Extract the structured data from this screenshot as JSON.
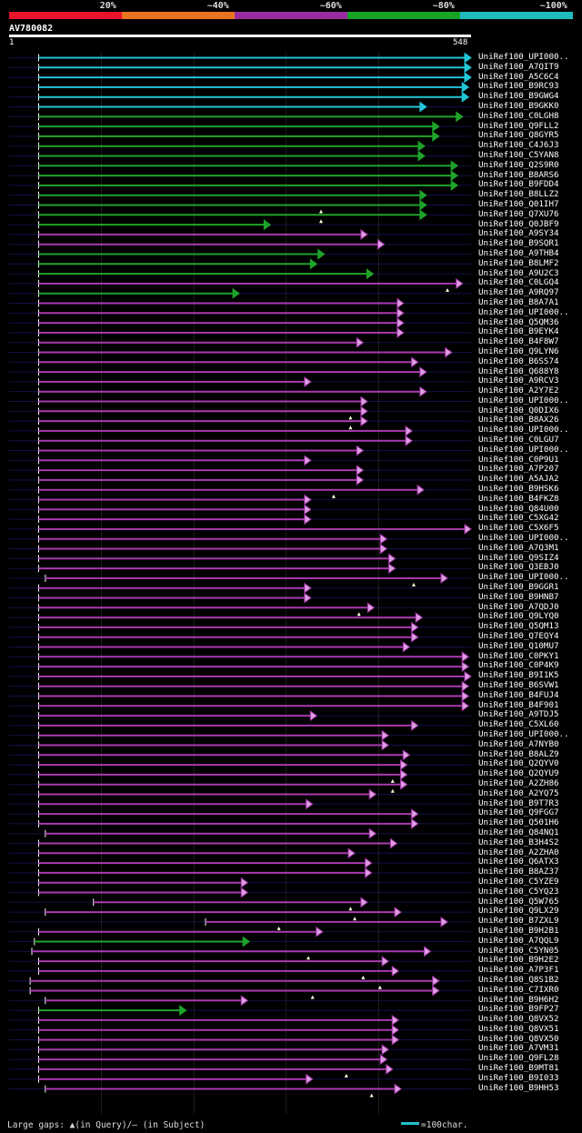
{
  "legend": {
    "segments": [
      {
        "color": "#e8132c",
        "label": "20%"
      },
      {
        "color": "#e87420",
        "label": "~40%"
      },
      {
        "color": "#9b2ca0",
        "label": "~60%"
      },
      {
        "color": "#17a326",
        "label": "~80%"
      },
      {
        "color": "#1fbbbd",
        "label": "~100%"
      }
    ]
  },
  "query": {
    "id": "AV780082",
    "length": 548,
    "ruler_start": "1",
    "ruler_end": "548"
  },
  "colors": {
    "cyan": "#22c6d8",
    "green": "#1fa32a",
    "purple": "#aa3ab0",
    "arrow_fill": "#dca0e0",
    "gap_marker": "#ffffe0"
  },
  "hits": [
    {
      "label": "UniRef100_UPI000..",
      "s": 35,
      "e": 548,
      "c": "cyan"
    },
    {
      "label": "UniRef100_A7QIT9",
      "s": 35,
      "e": 548,
      "c": "cyan"
    },
    {
      "label": "UniRef100_A5C6C4",
      "s": 35,
      "e": 548,
      "c": "cyan"
    },
    {
      "label": "UniRef100_B9RC93",
      "s": 35,
      "e": 545,
      "c": "cyan"
    },
    {
      "label": "UniRef100_B9GWG4",
      "s": 35,
      "e": 545,
      "c": "cyan"
    },
    {
      "label": "UniRef100_B9GKK0",
      "s": 35,
      "e": 495,
      "c": "cyan"
    },
    {
      "label": "UniRef100_C0LGH8",
      "s": 35,
      "e": 538,
      "c": "green"
    },
    {
      "label": "UniRef100_Q9FLL2",
      "s": 35,
      "e": 510,
      "c": "green"
    },
    {
      "label": "UniRef100_Q8GYR5",
      "s": 35,
      "e": 510,
      "c": "green"
    },
    {
      "label": "UniRef100_C4J6J3",
      "s": 35,
      "e": 493,
      "c": "green"
    },
    {
      "label": "UniRef100_C5YAN8",
      "s": 35,
      "e": 493,
      "c": "green"
    },
    {
      "label": "UniRef100_Q2S9R0",
      "s": 35,
      "e": 532,
      "c": "green"
    },
    {
      "label": "UniRef100_B8ARS6",
      "s": 35,
      "e": 532,
      "c": "green"
    },
    {
      "label": "UniRef100_B9FDD4",
      "s": 35,
      "e": 532,
      "c": "green"
    },
    {
      "label": "UniRef100_B8LLZ2",
      "s": 35,
      "e": 495,
      "c": "green"
    },
    {
      "label": "UniRef100_Q01IH7",
      "s": 35,
      "e": 495,
      "c": "green",
      "gap": 370
    },
    {
      "label": "UniRef100_Q7XU76",
      "s": 35,
      "e": 495,
      "c": "green",
      "gap": 370
    },
    {
      "label": "UniRef100_Q0JBF9",
      "s": 35,
      "e": 310,
      "c": "green"
    },
    {
      "label": "UniRef100_A9SY34",
      "s": 35,
      "e": 425,
      "c": "purple"
    },
    {
      "label": "UniRef100_B9SQR1",
      "s": 35,
      "e": 445,
      "c": "purple"
    },
    {
      "label": "UniRef100_A9THB4",
      "s": 35,
      "e": 374,
      "c": "green"
    },
    {
      "label": "UniRef100_B8LMF2",
      "s": 35,
      "e": 365,
      "c": "green"
    },
    {
      "label": "UniRef100_A9U2C3",
      "s": 35,
      "e": 432,
      "c": "green"
    },
    {
      "label": "UniRef100_C0LGQ4",
      "s": 35,
      "e": 538,
      "c": "purple",
      "gap": 520
    },
    {
      "label": "UniRef100_A9RQ97",
      "s": 35,
      "e": 273,
      "c": "green"
    },
    {
      "label": "UniRef100_B8A7A1",
      "s": 35,
      "e": 468,
      "c": "purple"
    },
    {
      "label": "UniRef100_UPI000..",
      "s": 35,
      "e": 468,
      "c": "purple"
    },
    {
      "label": "UniRef100_Q5QM36",
      "s": 35,
      "e": 468,
      "c": "purple"
    },
    {
      "label": "UniRef100_B9EYK4",
      "s": 35,
      "e": 468,
      "c": "purple"
    },
    {
      "label": "UniRef100_B4F8W7",
      "s": 35,
      "e": 420,
      "c": "purple"
    },
    {
      "label": "UniRef100_Q9LYN6",
      "s": 35,
      "e": 525,
      "c": "purple"
    },
    {
      "label": "UniRef100_B6SS74",
      "s": 35,
      "e": 485,
      "c": "purple"
    },
    {
      "label": "UniRef100_Q688Y8",
      "s": 35,
      "e": 495,
      "c": "purple"
    },
    {
      "label": "UniRef100_A9RCV3",
      "s": 35,
      "e": 358,
      "c": "purple"
    },
    {
      "label": "UniRef100_A2Y7E2",
      "s": 35,
      "e": 495,
      "c": "purple"
    },
    {
      "label": "UniRef100_UPI000..",
      "s": 35,
      "e": 425,
      "c": "purple"
    },
    {
      "label": "UniRef100_Q0DIX6",
      "s": 35,
      "e": 425,
      "c": "purple",
      "gap": 405
    },
    {
      "label": "UniRef100_B8AX26",
      "s": 35,
      "e": 425,
      "c": "purple",
      "gap": 405
    },
    {
      "label": "UniRef100_UPI000..",
      "s": 35,
      "e": 478,
      "c": "purple"
    },
    {
      "label": "UniRef100_C0LGU7",
      "s": 35,
      "e": 478,
      "c": "purple"
    },
    {
      "label": "UniRef100_UPI000..",
      "s": 35,
      "e": 420,
      "c": "purple"
    },
    {
      "label": "UniRef100_C0P9U1",
      "s": 35,
      "e": 358,
      "c": "purple"
    },
    {
      "label": "UniRef100_A7P207",
      "s": 35,
      "e": 420,
      "c": "purple"
    },
    {
      "label": "UniRef100_A5AJA2",
      "s": 35,
      "e": 420,
      "c": "purple"
    },
    {
      "label": "UniRef100_B9HSK6",
      "s": 35,
      "e": 492,
      "c": "purple",
      "gap": 385
    },
    {
      "label": "UniRef100_B4FKZ8",
      "s": 35,
      "e": 358,
      "c": "purple"
    },
    {
      "label": "UniRef100_Q84U00",
      "s": 35,
      "e": 358,
      "c": "purple"
    },
    {
      "label": "UniRef100_C5XG42",
      "s": 35,
      "e": 358,
      "c": "purple"
    },
    {
      "label": "UniRef100_C5X6F5",
      "s": 35,
      "e": 548,
      "c": "purple"
    },
    {
      "label": "UniRef100_UPI000..",
      "s": 35,
      "e": 448,
      "c": "purple"
    },
    {
      "label": "UniRef100_A7Q3M1",
      "s": 35,
      "e": 448,
      "c": "purple"
    },
    {
      "label": "UniRef100_Q9SIZ4",
      "s": 35,
      "e": 458,
      "c": "purple"
    },
    {
      "label": "UniRef100_Q3EBJ0",
      "s": 35,
      "e": 458,
      "c": "purple"
    },
    {
      "label": "UniRef100_UPI000..",
      "s": 43,
      "e": 520,
      "c": "purple",
      "gap": 480
    },
    {
      "label": "UniRef100_B9GGR1",
      "s": 35,
      "e": 358,
      "c": "purple"
    },
    {
      "label": "UniRef100_B9HNB7",
      "s": 35,
      "e": 358,
      "c": "purple"
    },
    {
      "label": "UniRef100_A7QDJ0",
      "s": 35,
      "e": 433,
      "c": "purple",
      "gap": 415
    },
    {
      "label": "UniRef100_Q9LYQ0",
      "s": 35,
      "e": 490,
      "c": "purple"
    },
    {
      "label": "UniRef100_Q5QM13",
      "s": 35,
      "e": 485,
      "c": "purple"
    },
    {
      "label": "UniRef100_Q7EQY4",
      "s": 35,
      "e": 485,
      "c": "purple"
    },
    {
      "label": "UniRef100_Q10MU7",
      "s": 35,
      "e": 475,
      "c": "purple"
    },
    {
      "label": "UniRef100_C0PKY1",
      "s": 35,
      "e": 545,
      "c": "purple"
    },
    {
      "label": "UniRef100_C0P4K9",
      "s": 35,
      "e": 545,
      "c": "purple"
    },
    {
      "label": "UniRef100_B9I1K5",
      "s": 35,
      "e": 548,
      "c": "purple"
    },
    {
      "label": "UniRef100_B6SVW1",
      "s": 35,
      "e": 545,
      "c": "purple"
    },
    {
      "label": "UniRef100_B4FUJ4",
      "s": 35,
      "e": 545,
      "c": "purple"
    },
    {
      "label": "UniRef100_B4F901",
      "s": 35,
      "e": 545,
      "c": "purple"
    },
    {
      "label": "UniRef100_A9TDJ5",
      "s": 35,
      "e": 365,
      "c": "purple"
    },
    {
      "label": "UniRef100_C5XL60",
      "s": 35,
      "e": 485,
      "c": "purple"
    },
    {
      "label": "UniRef100_UPI000..",
      "s": 35,
      "e": 450,
      "c": "purple"
    },
    {
      "label": "UniRef100_A7NYB0",
      "s": 35,
      "e": 450,
      "c": "purple"
    },
    {
      "label": "UniRef100_B8ALZ9",
      "s": 35,
      "e": 475,
      "c": "purple"
    },
    {
      "label": "UniRef100_Q2QYV0",
      "s": 35,
      "e": 472,
      "c": "purple"
    },
    {
      "label": "UniRef100_Q2QYU9",
      "s": 35,
      "e": 472,
      "c": "purple",
      "gap": 455
    },
    {
      "label": "UniRef100_A2ZH86",
      "s": 35,
      "e": 472,
      "c": "purple",
      "gap": 455
    },
    {
      "label": "UniRef100_A2YQ75",
      "s": 35,
      "e": 435,
      "c": "purple"
    },
    {
      "label": "UniRef100_B9T7R3",
      "s": 35,
      "e": 360,
      "c": "purple"
    },
    {
      "label": "UniRef100_Q9FGG7",
      "s": 35,
      "e": 485,
      "c": "purple"
    },
    {
      "label": "UniRef100_Q501H6",
      "s": 35,
      "e": 485,
      "c": "purple"
    },
    {
      "label": "UniRef100_Q84NQ1",
      "s": 43,
      "e": 435,
      "c": "purple"
    },
    {
      "label": "UniRef100_B3H4S2",
      "s": 35,
      "e": 460,
      "c": "purple"
    },
    {
      "label": "UniRef100_A2ZHA0",
      "s": 35,
      "e": 410,
      "c": "purple"
    },
    {
      "label": "UniRef100_Q6ATX3",
      "s": 35,
      "e": 430,
      "c": "purple"
    },
    {
      "label": "UniRef100_B8AZ37",
      "s": 35,
      "e": 430,
      "c": "purple"
    },
    {
      "label": "UniRef100_C5YZE9",
      "s": 35,
      "e": 283,
      "c": "purple"
    },
    {
      "label": "UniRef100_C5YQ23",
      "s": 35,
      "e": 283,
      "c": "purple"
    },
    {
      "label": "UniRef100_Q5W765",
      "s": 100,
      "e": 425,
      "c": "purple",
      "gap": 405
    },
    {
      "label": "UniRef100_Q9LX29",
      "s": 43,
      "e": 465,
      "c": "purple",
      "gap": 410
    },
    {
      "label": "UniRef100_B7ZXL9",
      "s": 233,
      "e": 520,
      "c": "purple",
      "gap": 320
    },
    {
      "label": "UniRef100_B9H2B1",
      "s": 35,
      "e": 372,
      "c": "purple"
    },
    {
      "label": "UniRef100_A7QQL9",
      "s": 30,
      "e": 285,
      "c": "green"
    },
    {
      "label": "UniRef100_C5YN05",
      "s": 27,
      "e": 500,
      "c": "purple",
      "gap": 355
    },
    {
      "label": "UniRef100_B9H2E2",
      "s": 35,
      "e": 450,
      "c": "purple"
    },
    {
      "label": "UniRef100_A7P3F1",
      "s": 35,
      "e": 462,
      "c": "purple",
      "gap": 420
    },
    {
      "label": "UniRef100_Q8S1B2",
      "s": 25,
      "e": 510,
      "c": "purple",
      "gap": 440
    },
    {
      "label": "UniRef100_C7IXR0",
      "s": 25,
      "e": 510,
      "c": "purple",
      "gap": 360
    },
    {
      "label": "UniRef100_B9H6H2",
      "s": 43,
      "e": 283,
      "c": "purple"
    },
    {
      "label": "UniRef100_B9FP27",
      "s": 35,
      "e": 210,
      "c": "green"
    },
    {
      "label": "UniRef100_Q8VX52",
      "s": 35,
      "e": 462,
      "c": "purple"
    },
    {
      "label": "UniRef100_Q8VX51",
      "s": 35,
      "e": 462,
      "c": "purple"
    },
    {
      "label": "UniRef100_Q8VX50",
      "s": 35,
      "e": 462,
      "c": "purple"
    },
    {
      "label": "UniRef100_A7VM31",
      "s": 35,
      "e": 450,
      "c": "purple"
    },
    {
      "label": "UniRef100_Q9FL28",
      "s": 35,
      "e": 448,
      "c": "purple"
    },
    {
      "label": "UniRef100_B9MT81",
      "s": 35,
      "e": 455,
      "c": "purple",
      "gap": 400
    },
    {
      "label": "UniRef100_B9I033",
      "s": 35,
      "e": 360,
      "c": "purple"
    },
    {
      "label": "UniRef100_B9HH53",
      "s": 43,
      "e": 465,
      "c": "purple",
      "gap": 430
    }
  ],
  "footer": {
    "text": "Large gaps: ▲(in Query)/— (in Subject)",
    "scale_label": "=100char."
  }
}
